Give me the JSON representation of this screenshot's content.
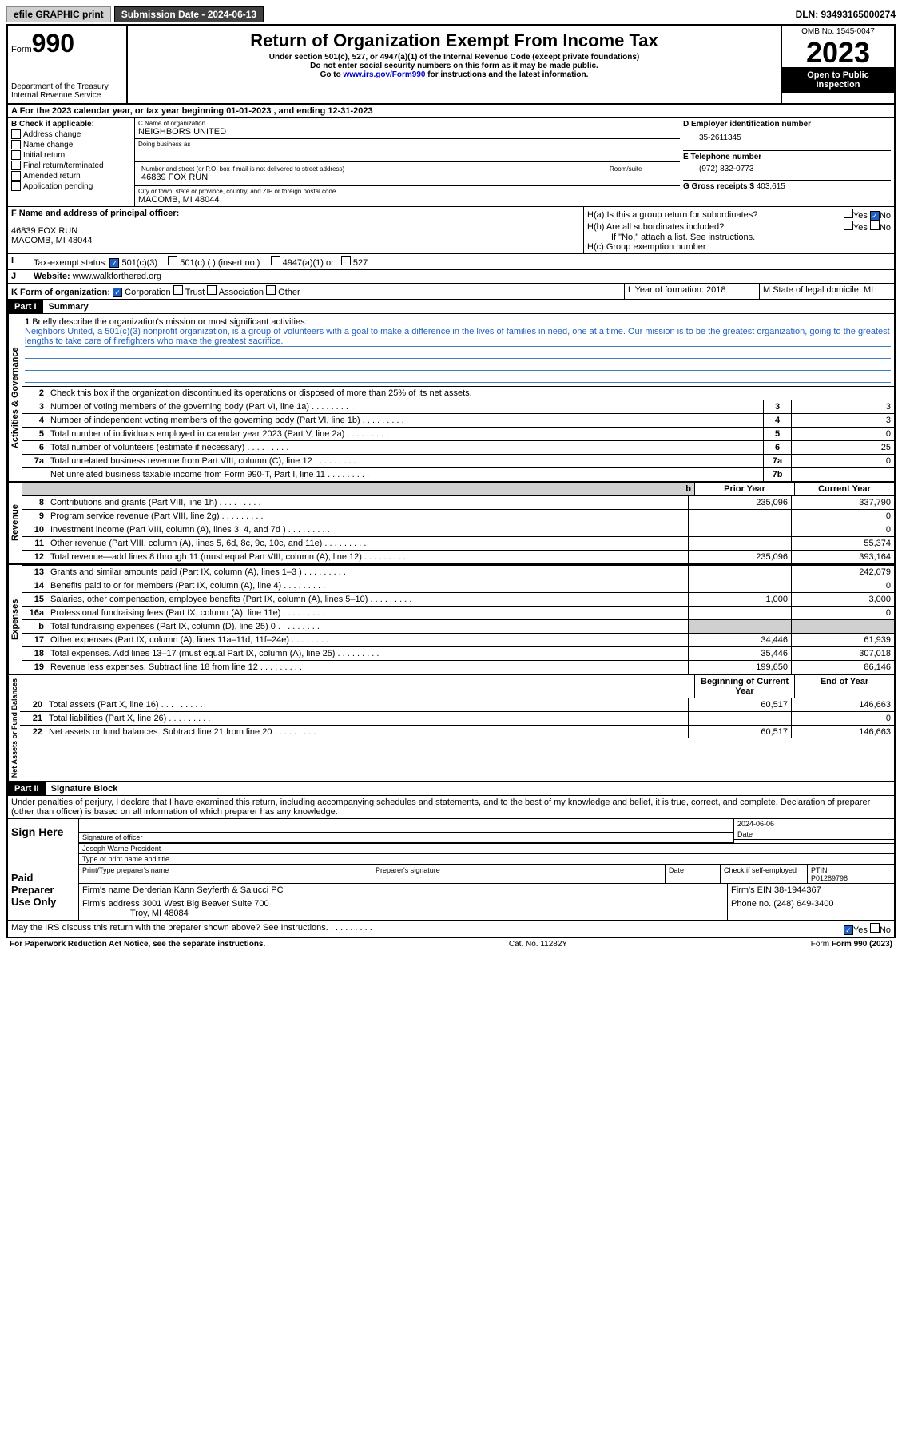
{
  "topbar": {
    "efile": "efile GRAPHIC print",
    "submission_label": "Submission Date - 2024-06-13",
    "dln": "DLN: 93493165000274"
  },
  "header": {
    "form_label": "Form",
    "form_number": "990",
    "dept": "Department of the Treasury",
    "irs": "Internal Revenue Service",
    "title": "Return of Organization Exempt From Income Tax",
    "subtitle": "Under section 501(c), 527, or 4947(a)(1) of the Internal Revenue Code (except private foundations)",
    "warn": "Do not enter social security numbers on this form as it may be made public.",
    "goto": "Go to ",
    "goto_link": "www.irs.gov/Form990",
    "goto_suffix": " for instructions and the latest information.",
    "omb": "OMB No. 1545-0047",
    "year": "2023",
    "inspection": "Open to Public Inspection"
  },
  "rowA": "A For the 2023 calendar year, or tax year beginning 01-01-2023   , and ending 12-31-2023",
  "boxB": {
    "label": "B Check if applicable:",
    "items": [
      "Address change",
      "Name change",
      "Initial return",
      "Final return/terminated",
      "Amended return",
      "Application pending"
    ]
  },
  "boxC": {
    "name_label": "C Name of organization",
    "name": "NEIGHBORS UNITED",
    "dba_label": "Doing business as",
    "dba": "",
    "street_label": "Number and street (or P.O. box if mail is not delivered to street address)",
    "room_label": "Room/suite",
    "street": "46839 FOX RUN",
    "city_label": "City or town, state or province, country, and ZIP or foreign postal code",
    "city": "MACOMB, MI  48044"
  },
  "boxD": {
    "label": "D Employer identification number",
    "value": "35-2611345"
  },
  "boxE": {
    "label": "E Telephone number",
    "value": "(972) 832-0773"
  },
  "boxG": {
    "label": "G Gross receipts $",
    "value": "403,615"
  },
  "boxF": {
    "label": "F Name and address of principal officer:",
    "addr1": "46839 FOX RUN",
    "addr2": "MACOMB, MI  48044"
  },
  "boxH": {
    "ha": "H(a)  Is this a group return for subordinates?",
    "hb": "H(b)  Are all subordinates included?",
    "hb_note": "If \"No,\" attach a list. See instructions.",
    "hc": "H(c)  Group exemption number  "
  },
  "rowI": {
    "label": "Tax-exempt status:",
    "opt1": "501(c)(3)",
    "opt2": "501(c) (  ) (insert no.)",
    "opt3": "4947(a)(1) or",
    "opt4": "527"
  },
  "rowJ": {
    "label": "Website: ",
    "value": "www.walkforthered.org"
  },
  "rowK": {
    "label": "K Form of organization:",
    "opts": [
      "Corporation",
      "Trust",
      "Association",
      "Other"
    ]
  },
  "rowL": {
    "label": "L Year of formation: 2018"
  },
  "rowM": {
    "label": "M State of legal domicile: MI"
  },
  "part1": {
    "header": "Part I",
    "title": "Summary",
    "q1_label": "1",
    "q1_text": "Briefly describe the organization's mission or most significant activities:",
    "mission": "Neighbors United, a 501(c)(3) nonprofit organization, is a group of volunteers with a goal to make a difference in the lives of families in need, one at a time. Our mission is to be the greatest organization, going to the greatest lengths to take care of firefighters who make the greatest sacrifice.",
    "q2": "Check this box        if the organization discontinued its operations or disposed of more than 25% of its net assets.",
    "sections": {
      "governance": "Activities & Governance",
      "revenue": "Revenue",
      "expenses": "Expenses",
      "netassets": "Net Assets or Fund Balances"
    },
    "lines": [
      {
        "n": "3",
        "t": "Number of voting members of the governing body (Part VI, line 1a)",
        "box": "3",
        "v": "3"
      },
      {
        "n": "4",
        "t": "Number of independent voting members of the governing body (Part VI, line 1b)",
        "box": "4",
        "v": "3"
      },
      {
        "n": "5",
        "t": "Total number of individuals employed in calendar year 2023 (Part V, line 2a)",
        "box": "5",
        "v": "0"
      },
      {
        "n": "6",
        "t": "Total number of volunteers (estimate if necessary)",
        "box": "6",
        "v": "25"
      },
      {
        "n": "7a",
        "t": "Total unrelated business revenue from Part VIII, column (C), line 12",
        "box": "7a",
        "v": "0"
      },
      {
        "n": "",
        "t": "Net unrelated business taxable income from Form 990-T, Part I, line 11",
        "box": "7b",
        "v": ""
      }
    ],
    "col_prior": "Prior Year",
    "col_current": "Current Year",
    "revenue_lines": [
      {
        "n": "8",
        "t": "Contributions and grants (Part VIII, line 1h)",
        "p": "235,096",
        "c": "337,790"
      },
      {
        "n": "9",
        "t": "Program service revenue (Part VIII, line 2g)",
        "p": "",
        "c": "0"
      },
      {
        "n": "10",
        "t": "Investment income (Part VIII, column (A), lines 3, 4, and 7d )",
        "p": "",
        "c": "0"
      },
      {
        "n": "11",
        "t": "Other revenue (Part VIII, column (A), lines 5, 6d, 8c, 9c, 10c, and 11e)",
        "p": "",
        "c": "55,374"
      },
      {
        "n": "12",
        "t": "Total revenue—add lines 8 through 11 (must equal Part VIII, column (A), line 12)",
        "p": "235,096",
        "c": "393,164"
      }
    ],
    "expense_lines": [
      {
        "n": "13",
        "t": "Grants and similar amounts paid (Part IX, column (A), lines 1–3 )",
        "p": "",
        "c": "242,079"
      },
      {
        "n": "14",
        "t": "Benefits paid to or for members (Part IX, column (A), line 4)",
        "p": "",
        "c": "0"
      },
      {
        "n": "15",
        "t": "Salaries, other compensation, employee benefits (Part IX, column (A), lines 5–10)",
        "p": "1,000",
        "c": "3,000"
      },
      {
        "n": "16a",
        "t": "Professional fundraising fees (Part IX, column (A), line 11e)",
        "p": "",
        "c": "0"
      },
      {
        "n": "b",
        "t": "Total fundraising expenses (Part IX, column (D), line 25) 0",
        "p": "gray",
        "c": "gray"
      },
      {
        "n": "17",
        "t": "Other expenses (Part IX, column (A), lines 11a–11d, 11f–24e)",
        "p": "34,446",
        "c": "61,939"
      },
      {
        "n": "18",
        "t": "Total expenses. Add lines 13–17 (must equal Part IX, column (A), line 25)",
        "p": "35,446",
        "c": "307,018"
      },
      {
        "n": "19",
        "t": "Revenue less expenses. Subtract line 18 from line 12",
        "p": "199,650",
        "c": "86,146"
      }
    ],
    "col_begin": "Beginning of Current Year",
    "col_end": "End of Year",
    "asset_lines": [
      {
        "n": "20",
        "t": "Total assets (Part X, line 16)",
        "p": "60,517",
        "c": "146,663"
      },
      {
        "n": "21",
        "t": "Total liabilities (Part X, line 26)",
        "p": "",
        "c": "0"
      },
      {
        "n": "22",
        "t": "Net assets or fund balances. Subtract line 21 from line 20",
        "p": "60,517",
        "c": "146,663"
      }
    ]
  },
  "part2": {
    "header": "Part II",
    "title": "Signature Block",
    "declaration": "Under penalties of perjury, I declare that I have examined this return, including accompanying schedules and statements, and to the best of my knowledge and belief, it is true, correct, and complete. Declaration of preparer (other than officer) is based on all information of which preparer has any knowledge.",
    "sign_here": "Sign Here",
    "sig_officer": "Signature of officer",
    "sig_date": "2024-06-06",
    "date_label": "Date",
    "officer_name": "Joseph Warne  President",
    "type_name": "Type or print name and title",
    "paid_preparer": "Paid Preparer Use Only",
    "print_name_label": "Print/Type preparer's name",
    "prep_sig_label": "Preparer's signature",
    "check_self": "Check         if self-employed",
    "ptin_label": "PTIN",
    "ptin": "P01289798",
    "firm_name_label": "Firm's name   ",
    "firm_name": "Derderian Kann Seyferth & Salucci PC",
    "firm_ein_label": "Firm's EIN  ",
    "firm_ein": "38-1944367",
    "firm_addr_label": "Firm's address  ",
    "firm_addr1": "3001 West Big Beaver Suite 700",
    "firm_addr2": "Troy, MI  48084",
    "phone_label": "Phone no. ",
    "phone": "(248) 649-3400",
    "discuss": "May the IRS discuss this return with the preparer shown above? See Instructions."
  },
  "footer": {
    "paperwork": "For Paperwork Reduction Act Notice, see the separate instructions.",
    "catno": "Cat. No. 11282Y",
    "formno": "Form 990 (2023)"
  },
  "yesno": {
    "yes": "Yes",
    "no": "No"
  }
}
